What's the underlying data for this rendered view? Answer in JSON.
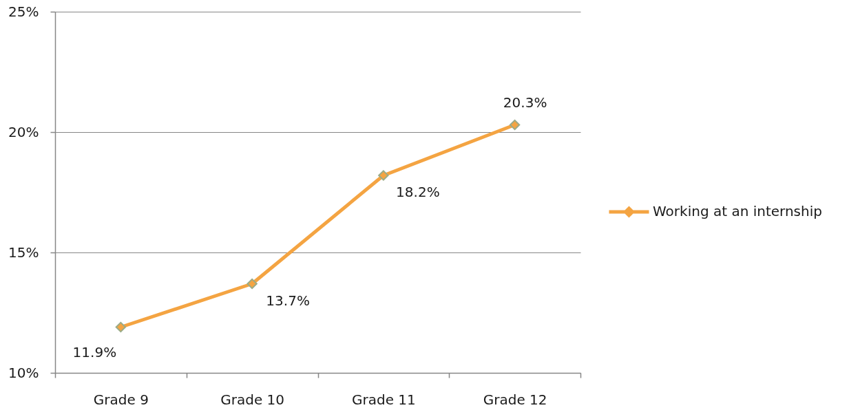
{
  "chart_data": {
    "type": "line",
    "categories": [
      "Grade 9",
      "Grade 10",
      "Grade 11",
      "Grade 12"
    ],
    "series": [
      {
        "name": "Working at an internship",
        "color": "#f4a442",
        "values": [
          11.9,
          13.7,
          18.2,
          20.3
        ],
        "value_labels": [
          "11.9%",
          "13.7%",
          "18.2%",
          "20.3%"
        ]
      }
    ],
    "ylim": [
      10,
      25
    ],
    "yticks": [
      {
        "value": 10,
        "label": "10%"
      },
      {
        "value": 15,
        "label": "15%"
      },
      {
        "value": 20,
        "label": "20%"
      },
      {
        "value": 25,
        "label": "25%"
      }
    ],
    "grid": "y",
    "legend": "right",
    "marker": "diamond",
    "line_style": "solid"
  }
}
